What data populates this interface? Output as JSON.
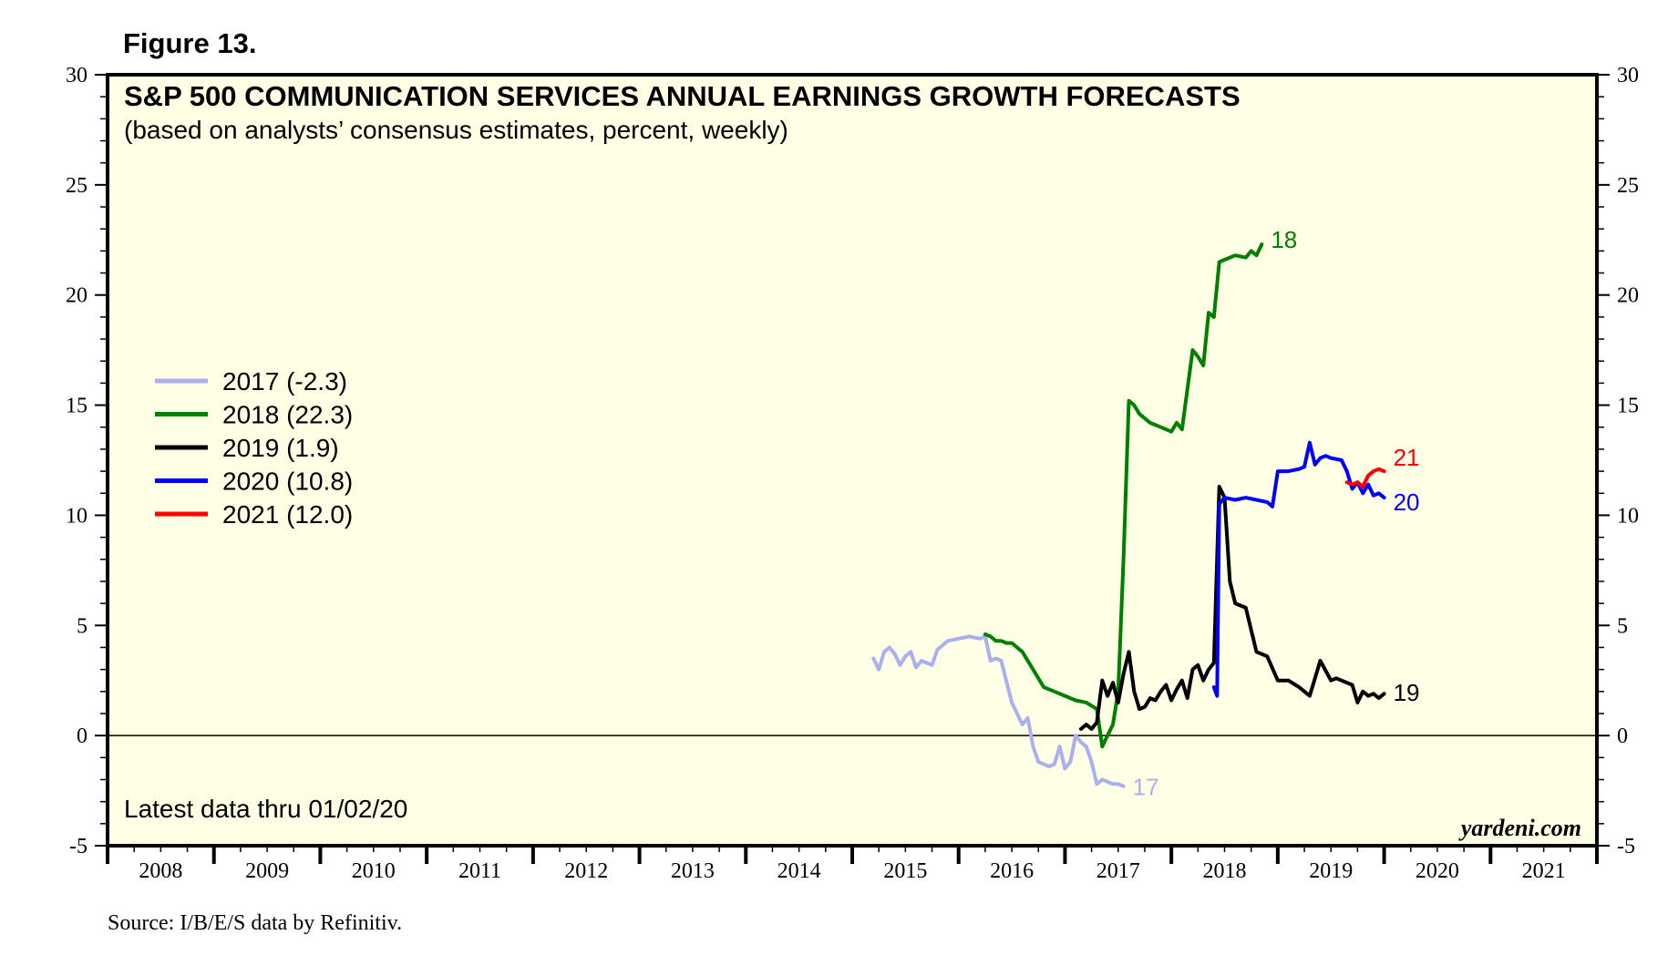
{
  "figure_label": "Figure 13.",
  "source": "Source: I/B/E/S data by Refinitiv.",
  "latest_data": "Latest data thru 01/02/20",
  "brand": "yardeni.com",
  "colors": {
    "panel_bg": "#ffffe6",
    "2017": "#aab0ee",
    "2018": "#008000",
    "2019": "#000000",
    "2020": "#0000ff",
    "2021": "#ff0000"
  },
  "chart_data": {
    "type": "line",
    "title": "S&P 500 COMMUNICATION SERVICES ANNUAL EARNINGS GROWTH FORECASTS",
    "subtitle": "(based on analysts’ consensus estimates, percent, weekly)",
    "xlabel": "",
    "ylabel": "",
    "xlim": [
      2008,
      2022
    ],
    "ylim": [
      -5,
      30
    ],
    "y_ticks": [
      -5,
      0,
      5,
      10,
      15,
      20,
      25,
      30
    ],
    "x_tick_labels": [
      "2008",
      "2009",
      "2010",
      "2011",
      "2012",
      "2013",
      "2014",
      "2015",
      "2016",
      "2017",
      "2018",
      "2019",
      "2020",
      "2021"
    ],
    "reference_line": 0,
    "legend_position": "left",
    "series": [
      {
        "name": "2017",
        "legend": "2017 (-2.3)",
        "end_label": "17",
        "color_key": "2017",
        "x": [
          2015.2,
          2015.25,
          2015.3,
          2015.35,
          2015.4,
          2015.45,
          2015.5,
          2015.55,
          2015.6,
          2015.65,
          2015.7,
          2015.75,
          2015.8,
          2015.9,
          2016.0,
          2016.1,
          2016.2,
          2016.25,
          2016.3,
          2016.35,
          2016.4,
          2016.5,
          2016.55,
          2016.6,
          2016.65,
          2016.7,
          2016.75,
          2016.8,
          2016.85,
          2016.9,
          2016.95,
          2017.0,
          2017.05,
          2017.1,
          2017.15,
          2017.2,
          2017.25,
          2017.3,
          2017.35,
          2017.4,
          2017.45,
          2017.5,
          2017.55
        ],
        "values": [
          3.5,
          3.0,
          3.8,
          4.0,
          3.7,
          3.2,
          3.6,
          3.8,
          3.1,
          3.4,
          3.3,
          3.2,
          3.9,
          4.3,
          4.4,
          4.5,
          4.4,
          4.5,
          3.4,
          3.5,
          3.4,
          1.5,
          1.0,
          0.5,
          0.8,
          -0.5,
          -1.2,
          -1.3,
          -1.4,
          -1.3,
          -0.5,
          -1.5,
          -1.2,
          0.0,
          -0.3,
          -0.5,
          -1.2,
          -2.2,
          -2.0,
          -2.1,
          -2.2,
          -2.2,
          -2.3
        ]
      },
      {
        "name": "2018",
        "legend": "2018 (22.3)",
        "end_label": "18",
        "color_key": "2018",
        "x": [
          2016.25,
          2016.3,
          2016.35,
          2016.4,
          2016.45,
          2016.5,
          2016.6,
          2016.7,
          2016.8,
          2016.9,
          2017.0,
          2017.1,
          2017.2,
          2017.3,
          2017.35,
          2017.4,
          2017.45,
          2017.5,
          2017.55,
          2017.6,
          2017.65,
          2017.7,
          2017.8,
          2017.9,
          2018.0,
          2018.05,
          2018.1,
          2018.2,
          2018.25,
          2018.3,
          2018.35,
          2018.4,
          2018.45,
          2018.5,
          2018.55,
          2018.6,
          2018.7,
          2018.75,
          2018.8,
          2018.85
        ],
        "values": [
          4.6,
          4.5,
          4.3,
          4.3,
          4.2,
          4.2,
          3.8,
          3.0,
          2.2,
          2.0,
          1.8,
          1.6,
          1.5,
          1.2,
          -0.5,
          0.0,
          0.5,
          2.0,
          8.0,
          15.2,
          15.0,
          14.6,
          14.2,
          14.0,
          13.8,
          14.2,
          13.9,
          17.5,
          17.2,
          16.8,
          19.2,
          19.0,
          21.5,
          21.6,
          21.7,
          21.8,
          21.7,
          22.0,
          21.8,
          22.3
        ]
      },
      {
        "name": "2019",
        "legend": "2019 (1.9)",
        "end_label": "19",
        "color_key": "2019",
        "x": [
          2017.15,
          2017.2,
          2017.25,
          2017.3,
          2017.35,
          2017.4,
          2017.45,
          2017.5,
          2017.55,
          2017.6,
          2017.65,
          2017.7,
          2017.75,
          2017.8,
          2017.85,
          2017.9,
          2017.95,
          2018.0,
          2018.05,
          2018.1,
          2018.15,
          2018.2,
          2018.25,
          2018.3,
          2018.35,
          2018.4,
          2018.45,
          2018.5,
          2018.55,
          2018.6,
          2018.7,
          2018.8,
          2018.9,
          2019.0,
          2019.1,
          2019.2,
          2019.3,
          2019.4,
          2019.5,
          2019.55,
          2019.6,
          2019.65,
          2019.7,
          2019.75,
          2019.8,
          2019.85,
          2019.9,
          2019.95,
          2020.0
        ],
        "values": [
          0.3,
          0.5,
          0.3,
          0.6,
          2.5,
          1.8,
          2.4,
          1.5,
          2.8,
          3.8,
          2.0,
          1.2,
          1.3,
          1.7,
          1.6,
          2.0,
          2.3,
          1.6,
          2.1,
          2.5,
          1.7,
          3.0,
          3.2,
          2.5,
          3.0,
          3.3,
          11.3,
          10.8,
          7.0,
          6.0,
          5.8,
          3.8,
          3.6,
          2.5,
          2.5,
          2.2,
          1.8,
          3.4,
          2.5,
          2.6,
          2.5,
          2.4,
          2.3,
          1.5,
          2.0,
          1.8,
          1.9,
          1.7,
          1.9
        ]
      },
      {
        "name": "2020",
        "legend": "2020 (10.8)",
        "end_label": "20",
        "color_key": "2020",
        "x": [
          2018.4,
          2018.43,
          2018.45,
          2018.5,
          2018.6,
          2018.7,
          2018.8,
          2018.9,
          2018.95,
          2019.0,
          2019.1,
          2019.2,
          2019.25,
          2019.3,
          2019.35,
          2019.4,
          2019.45,
          2019.5,
          2019.6,
          2019.65,
          2019.7,
          2019.75,
          2019.8,
          2019.85,
          2019.9,
          2019.95,
          2020.0
        ],
        "values": [
          2.2,
          1.8,
          10.5,
          10.8,
          10.7,
          10.8,
          10.7,
          10.6,
          10.4,
          12.0,
          12.0,
          12.1,
          12.2,
          13.3,
          12.3,
          12.6,
          12.7,
          12.6,
          12.5,
          12.0,
          11.2,
          11.5,
          11.0,
          11.4,
          10.9,
          11.0,
          10.8
        ]
      },
      {
        "name": "2021",
        "legend": "2021 (12.0)",
        "end_label": "21",
        "color_key": "2021",
        "x": [
          2019.65,
          2019.7,
          2019.75,
          2019.8,
          2019.85,
          2019.9,
          2019.95,
          2020.0
        ],
        "values": [
          11.5,
          11.4,
          11.5,
          11.3,
          11.8,
          12.0,
          12.1,
          12.0
        ]
      }
    ]
  }
}
